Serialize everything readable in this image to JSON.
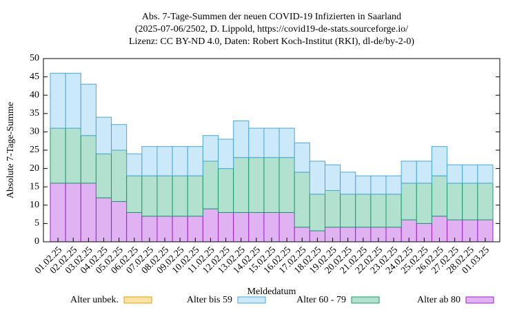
{
  "chart_data": {
    "type": "stacked_bar",
    "title": [
      "Abs. 7-Tage-Summen der neuen COVID-19 Infizierten in Saarland",
      "(2025-07-06/2502, D. Lippold, https://covid19-de-stats.sourceforge.io/",
      "Lizenz: CC BY-ND 4.0, Daten: Robert Koch-Institut (RKI), dl-de/by-2-0)"
    ],
    "x_label": "Meldedatum",
    "y_label": "Absolute 7-Tage-Summe",
    "categories": [
      "01.02.25",
      "02.02.25",
      "03.02.25",
      "04.02.25",
      "05.02.25",
      "06.02.25",
      "07.02.25",
      "08.02.25",
      "09.02.25",
      "10.02.25",
      "11.02.25",
      "12.02.25",
      "13.02.25",
      "14.02.25",
      "15.02.25",
      "16.02.25",
      "17.02.25",
      "18.02.25",
      "19.02.25",
      "20.02.25",
      "21.02.25",
      "22.02.25",
      "23.02.25",
      "24.02.25",
      "25.02.25",
      "26.02.25",
      "27.02.25",
      "28.02.25",
      "01.03.25"
    ],
    "series": [
      {
        "name": "Alter ab 80",
        "color": "#e0b2f2",
        "stroke": "#9b1fd1",
        "values": [
          16,
          16,
          16,
          12,
          11,
          8,
          7,
          7,
          7,
          7,
          9,
          8,
          8,
          8,
          8,
          8,
          4,
          3,
          4,
          4,
          4,
          4,
          4,
          6,
          5,
          7,
          6,
          6,
          6
        ]
      },
      {
        "name": "Alter 60 - 79",
        "color": "#b2e2cf",
        "stroke": "#1a9a6a",
        "values": [
          15,
          15,
          13,
          12,
          14,
          10,
          11,
          11,
          11,
          11,
          13,
          12,
          15,
          15,
          15,
          15,
          15,
          10,
          10,
          9,
          9,
          9,
          9,
          10,
          11,
          11,
          10,
          10,
          10
        ]
      },
      {
        "name": "Alter bis 59",
        "color": "#cce9f9",
        "stroke": "#4aa6d6",
        "values": [
          15,
          15,
          14,
          10,
          7,
          6,
          8,
          8,
          8,
          8,
          7,
          8,
          10,
          8,
          8,
          8,
          8,
          9,
          7,
          6,
          5,
          5,
          5,
          6,
          6,
          8,
          5,
          5,
          5
        ]
      },
      {
        "name": "Alter unbek.",
        "color": "#fde3a6",
        "stroke": "#e0a000",
        "values": [
          0,
          0,
          0,
          0,
          0,
          0,
          0,
          0,
          0,
          0,
          0,
          0,
          0,
          0,
          0,
          0,
          0,
          0,
          0,
          0,
          0,
          0,
          0,
          0,
          0,
          0,
          0,
          0,
          0
        ]
      }
    ],
    "legend_order": [
      3,
      2,
      1,
      0
    ],
    "ylim": [
      0,
      50
    ],
    "yticks": [
      0,
      5,
      10,
      15,
      20,
      25,
      30,
      35,
      40,
      45,
      50
    ]
  }
}
